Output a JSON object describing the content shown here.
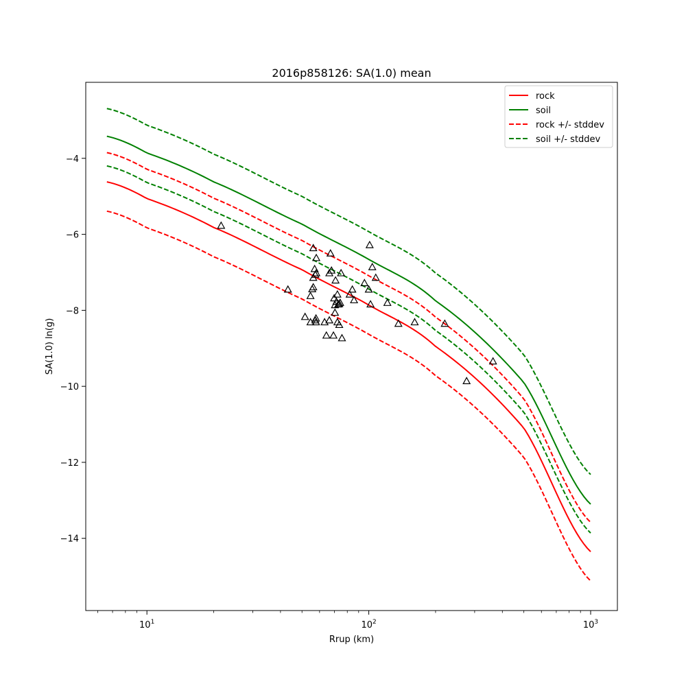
{
  "chart_data": {
    "type": "line",
    "title": "2016p858126: SA(1.0) mean",
    "xlabel": "Rrup (km)",
    "ylabel": "SA(1.0) ln(g)",
    "xscale": "log",
    "xlim": [
      5.3,
      1320
    ],
    "ylim": [
      -15.9,
      -2.0
    ],
    "xticks": [
      {
        "value": 10,
        "base": "10",
        "exp": "1"
      },
      {
        "value": 100,
        "base": "10",
        "exp": "2"
      },
      {
        "value": 1000,
        "base": "10",
        "exp": "3"
      }
    ],
    "yticks": [
      -14,
      -12,
      -10,
      -8,
      -6,
      -4
    ],
    "grid": false,
    "legend_position": "top-right",
    "series": [
      {
        "name": "rock",
        "color": "#ff0000",
        "style": "solid",
        "x": [
          6.6,
          10,
          20,
          50,
          100,
          200,
          500,
          1000
        ],
        "y": [
          -4.62,
          -5.06,
          -5.82,
          -6.93,
          -7.86,
          -8.95,
          -11.1,
          -14.35
        ]
      },
      {
        "name": "soil",
        "color": "#008000",
        "style": "solid",
        "x": [
          6.6,
          10,
          20,
          50,
          100,
          200,
          500,
          1000
        ],
        "y": [
          -3.42,
          -3.86,
          -4.62,
          -5.73,
          -6.66,
          -7.75,
          -9.9,
          -13.1
        ]
      },
      {
        "name": "rock +/- stddev",
        "color": "#ff0000",
        "style": "dashed",
        "x": [
          6.6,
          10,
          20,
          50,
          100,
          200,
          500,
          1000
        ],
        "y": [
          -3.85,
          -4.29,
          -5.05,
          -6.16,
          -7.09,
          -8.18,
          -10.33,
          -13.58
        ]
      },
      {
        "name": "",
        "color": "#ff0000",
        "style": "dashed",
        "x": [
          6.6,
          10,
          20,
          50,
          100,
          200,
          500,
          1000
        ],
        "y": [
          -5.39,
          -5.83,
          -6.59,
          -7.7,
          -8.63,
          -9.72,
          -11.87,
          -15.12
        ]
      },
      {
        "name": "soil +/- stddev",
        "color": "#008000",
        "style": "dashed",
        "x": [
          6.6,
          10,
          20,
          50,
          100,
          200,
          500,
          1000
        ],
        "y": [
          -2.69,
          -3.13,
          -3.89,
          -5.0,
          -5.93,
          -7.02,
          -9.17,
          -12.32
        ]
      },
      {
        "name": "",
        "color": "#008000",
        "style": "dashed",
        "x": [
          6.6,
          10,
          20,
          50,
          100,
          200,
          500,
          1000
        ],
        "y": [
          -4.2,
          -4.64,
          -5.4,
          -6.51,
          -7.44,
          -8.53,
          -10.68,
          -13.86
        ]
      }
    ],
    "observations": {
      "marker": "triangle",
      "color": "#000000",
      "points": [
        [
          21.6,
          -5.77
        ],
        [
          43.2,
          -7.45
        ],
        [
          51.6,
          -8.17
        ],
        [
          54.6,
          -7.62
        ],
        [
          54.6,
          -8.31
        ],
        [
          56.2,
          -7.39
        ],
        [
          55.6,
          -7.44
        ],
        [
          56.2,
          -7.14
        ],
        [
          56.2,
          -6.36
        ],
        [
          57.0,
          -6.91
        ],
        [
          57.8,
          -8.21
        ],
        [
          57.8,
          -8.31
        ],
        [
          58.0,
          -6.62
        ],
        [
          58.0,
          -7.02
        ],
        [
          57.4,
          -8.26
        ],
        [
          57.4,
          -7.06
        ],
        [
          63.2,
          -8.31
        ],
        [
          64.4,
          -8.66
        ],
        [
          66.4,
          -8.26
        ],
        [
          66.4,
          -7.02
        ],
        [
          67.2,
          -6.5
        ],
        [
          67.9,
          -6.95
        ],
        [
          69.3,
          -8.66
        ],
        [
          69.8,
          -7.68
        ],
        [
          70.4,
          -7.86
        ],
        [
          70.4,
          -8.06
        ],
        [
          70.8,
          -7.21
        ],
        [
          71.5,
          -7.77
        ],
        [
          72.2,
          -7.58
        ],
        [
          72.2,
          -8.31
        ],
        [
          72.9,
          -7.84
        ],
        [
          73.6,
          -8.38
        ],
        [
          73.6,
          -7.83
        ],
        [
          74.3,
          -7.8
        ],
        [
          75.0,
          -7.02
        ],
        [
          75.7,
          -8.73
        ],
        [
          82.0,
          -7.58
        ],
        [
          84.3,
          -7.45
        ],
        [
          85.8,
          -7.73
        ],
        [
          95.6,
          -7.28
        ],
        [
          100.0,
          -7.45
        ],
        [
          100.9,
          -6.28
        ],
        [
          101.8,
          -7.84
        ],
        [
          103.7,
          -6.86
        ],
        [
          107.5,
          -7.14
        ],
        [
          121.3,
          -7.8
        ],
        [
          136.0,
          -8.35
        ],
        [
          161.0,
          -8.31
        ],
        [
          220.0,
          -8.35
        ],
        [
          276.0,
          -9.86
        ],
        [
          363.0,
          -9.34
        ]
      ]
    }
  }
}
